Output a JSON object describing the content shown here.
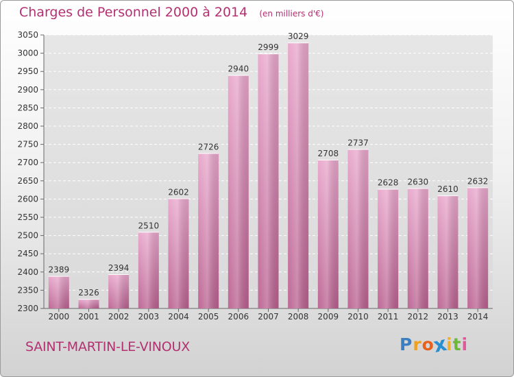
{
  "title": "Charges de Personnel 2000 à 2014",
  "subtitle": "(en milliers d'€)",
  "city": "SAINT-MARTIN-LE-VINOUX",
  "logo": {
    "letters": [
      "P",
      "r",
      "o",
      "x",
      "i",
      "t",
      "i"
    ],
    "colors": [
      "#3a7fc2",
      "#f0a020",
      "#e8601c",
      "#2a8fd0",
      "#f0b030",
      "#6cb83a",
      "#e05a9a"
    ]
  },
  "chart_data": {
    "type": "bar",
    "title": "Charges de Personnel 2000 à 2014",
    "subtitle": "(en milliers d'€)",
    "categories": [
      "2000",
      "2001",
      "2002",
      "2003",
      "2004",
      "2005",
      "2006",
      "2007",
      "2008",
      "2009",
      "2010",
      "2011",
      "2012",
      "2013",
      "2014"
    ],
    "values": [
      2389,
      2326,
      2394,
      2510,
      2602,
      2726,
      2940,
      2999,
      3029,
      2708,
      2737,
      2628,
      2630,
      2610,
      2632
    ],
    "ylim": [
      2300,
      3050
    ],
    "yticks": [
      2300,
      2350,
      2400,
      2450,
      2500,
      2550,
      2600,
      2650,
      2700,
      2750,
      2800,
      2850,
      2900,
      2950,
      3000,
      3050
    ],
    "grid": true,
    "bar_color": "#d27aaa"
  }
}
